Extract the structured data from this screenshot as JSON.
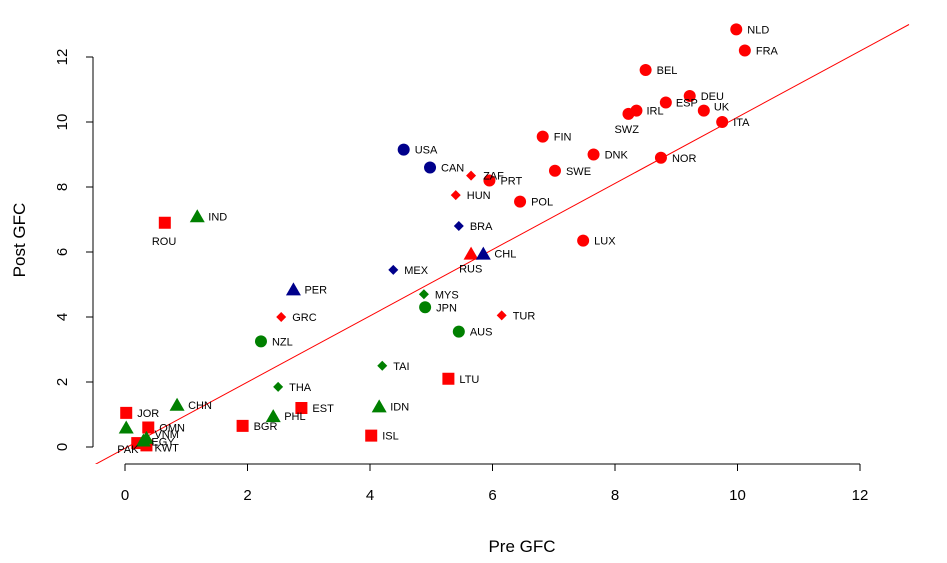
{
  "chart_data": {
    "type": "scatter",
    "title": "",
    "xlabel": "Pre GFC",
    "ylabel": "Post GFC",
    "xlim": [
      -0.5,
      12
    ],
    "ylim": [
      -0.5,
      12.8
    ],
    "x_ticks": [
      0,
      2,
      4,
      6,
      8,
      10,
      12
    ],
    "y_ticks": [
      0,
      2,
      4,
      6,
      8,
      10,
      12
    ],
    "grid": false,
    "fit_line": {
      "color": "#ff0000",
      "x": [
        -0.5,
        12.8
      ],
      "y": [
        -0.55,
        13.0
      ]
    },
    "colors": {
      "red": "#ff0000",
      "navy": "#00008b",
      "green": "#008000"
    },
    "points": [
      {
        "label": "NLD",
        "x": 9.98,
        "y": 12.85,
        "shape": "circle",
        "color": "red"
      },
      {
        "label": "FRA",
        "x": 10.12,
        "y": 12.2,
        "shape": "circle",
        "color": "red"
      },
      {
        "label": "BEL",
        "x": 8.5,
        "y": 11.6,
        "shape": "circle",
        "color": "red"
      },
      {
        "label": "DEU",
        "x": 9.22,
        "y": 10.8,
        "shape": "circle",
        "color": "red"
      },
      {
        "label": "ESP",
        "x": 8.83,
        "y": 10.6,
        "shape": "circle",
        "color": "red"
      },
      {
        "label": "IRL",
        "x": 8.35,
        "y": 10.35,
        "shape": "circle",
        "color": "red"
      },
      {
        "label": "SWZ",
        "x": 8.22,
        "y": 10.25,
        "shape": "circle",
        "color": "red"
      },
      {
        "label": "UK",
        "x": 9.45,
        "y": 10.35,
        "shape": "circle",
        "color": "red"
      },
      {
        "label": "ITA",
        "x": 9.75,
        "y": 10.0,
        "shape": "circle",
        "color": "red"
      },
      {
        "label": "FIN",
        "x": 6.82,
        "y": 9.55,
        "shape": "circle",
        "color": "red"
      },
      {
        "label": "DNK",
        "x": 7.65,
        "y": 9.0,
        "shape": "circle",
        "color": "red"
      },
      {
        "label": "NOR",
        "x": 8.75,
        "y": 8.9,
        "shape": "circle",
        "color": "red"
      },
      {
        "label": "SWE",
        "x": 7.02,
        "y": 8.5,
        "shape": "circle",
        "color": "red"
      },
      {
        "label": "PRT",
        "x": 5.95,
        "y": 8.2,
        "shape": "circle",
        "color": "red"
      },
      {
        "label": "POL",
        "x": 6.45,
        "y": 7.55,
        "shape": "circle",
        "color": "red"
      },
      {
        "label": "LUX",
        "x": 7.48,
        "y": 6.35,
        "shape": "circle",
        "color": "red"
      },
      {
        "label": "ZAF",
        "x": 5.65,
        "y": 8.35,
        "shape": "diamond",
        "color": "red"
      },
      {
        "label": "HUN",
        "x": 5.4,
        "y": 7.75,
        "shape": "diamond",
        "color": "red"
      },
      {
        "label": "GRC",
        "x": 2.55,
        "y": 4.0,
        "shape": "diamond",
        "color": "red"
      },
      {
        "label": "TUR",
        "x": 6.15,
        "y": 4.05,
        "shape": "diamond",
        "color": "red"
      },
      {
        "label": "RUS",
        "x": 5.65,
        "y": 5.95,
        "shape": "triangle",
        "color": "red"
      },
      {
        "label": "ROU",
        "x": 0.65,
        "y": 6.9,
        "shape": "square",
        "color": "red"
      },
      {
        "label": "LTU",
        "x": 5.28,
        "y": 2.1,
        "shape": "square",
        "color": "red"
      },
      {
        "label": "EST",
        "x": 2.88,
        "y": 1.2,
        "shape": "square",
        "color": "red"
      },
      {
        "label": "BGR",
        "x": 1.92,
        "y": 0.65,
        "shape": "square",
        "color": "red"
      },
      {
        "label": "ISL",
        "x": 4.02,
        "y": 0.35,
        "shape": "square",
        "color": "red"
      },
      {
        "label": "JOR",
        "x": 0.02,
        "y": 1.05,
        "shape": "square",
        "color": "red"
      },
      {
        "label": "OMN",
        "x": 0.38,
        "y": 0.6,
        "shape": "square",
        "color": "red"
      },
      {
        "label": "PAK",
        "x": 0.2,
        "y": 0.12,
        "shape": "square",
        "color": "red"
      },
      {
        "label": "KWT",
        "x": 0.35,
        "y": 0.05,
        "shape": "square",
        "color": "red"
      },
      {
        "label": "USA",
        "x": 4.55,
        "y": 9.15,
        "shape": "circle",
        "color": "navy"
      },
      {
        "label": "CAN",
        "x": 4.98,
        "y": 8.6,
        "shape": "circle",
        "color": "navy"
      },
      {
        "label": "BRA",
        "x": 5.45,
        "y": 6.8,
        "shape": "diamond",
        "color": "navy"
      },
      {
        "label": "MEX",
        "x": 4.38,
        "y": 5.45,
        "shape": "diamond",
        "color": "navy"
      },
      {
        "label": "PER",
        "x": 2.75,
        "y": 4.85,
        "shape": "triangle",
        "color": "navy"
      },
      {
        "label": "CHL",
        "x": 5.85,
        "y": 5.95,
        "shape": "triangle",
        "color": "navy"
      },
      {
        "label": "IND",
        "x": 1.18,
        "y": 7.1,
        "shape": "triangle",
        "color": "green"
      },
      {
        "label": "MYS",
        "x": 4.88,
        "y": 4.7,
        "shape": "diamond",
        "color": "green"
      },
      {
        "label": "JPN",
        "x": 4.9,
        "y": 4.3,
        "shape": "circle",
        "color": "green"
      },
      {
        "label": "AUS",
        "x": 5.45,
        "y": 3.55,
        "shape": "circle",
        "color": "green"
      },
      {
        "label": "NZL",
        "x": 2.22,
        "y": 3.25,
        "shape": "circle",
        "color": "green"
      },
      {
        "label": "TAI",
        "x": 4.2,
        "y": 2.5,
        "shape": "diamond",
        "color": "green"
      },
      {
        "label": "THA",
        "x": 2.5,
        "y": 1.85,
        "shape": "diamond",
        "color": "green"
      },
      {
        "label": "CHN",
        "x": 0.85,
        "y": 1.3,
        "shape": "triangle",
        "color": "green"
      },
      {
        "label": "IDN",
        "x": 4.15,
        "y": 1.25,
        "shape": "triangle",
        "color": "green"
      },
      {
        "label": "PHL",
        "x": 2.42,
        "y": 0.95,
        "shape": "triangle",
        "color": "green"
      },
      {
        "label": "",
        "x": 0.02,
        "y": 0.6,
        "shape": "triangle",
        "color": "green"
      },
      {
        "label": "VNM",
        "x": 0.35,
        "y": 0.28,
        "shape": "triangle",
        "color": "green"
      },
      {
        "label": "EGY",
        "x": 0.3,
        "y": 0.2,
        "shape": "triangle",
        "color": "green"
      }
    ]
  }
}
